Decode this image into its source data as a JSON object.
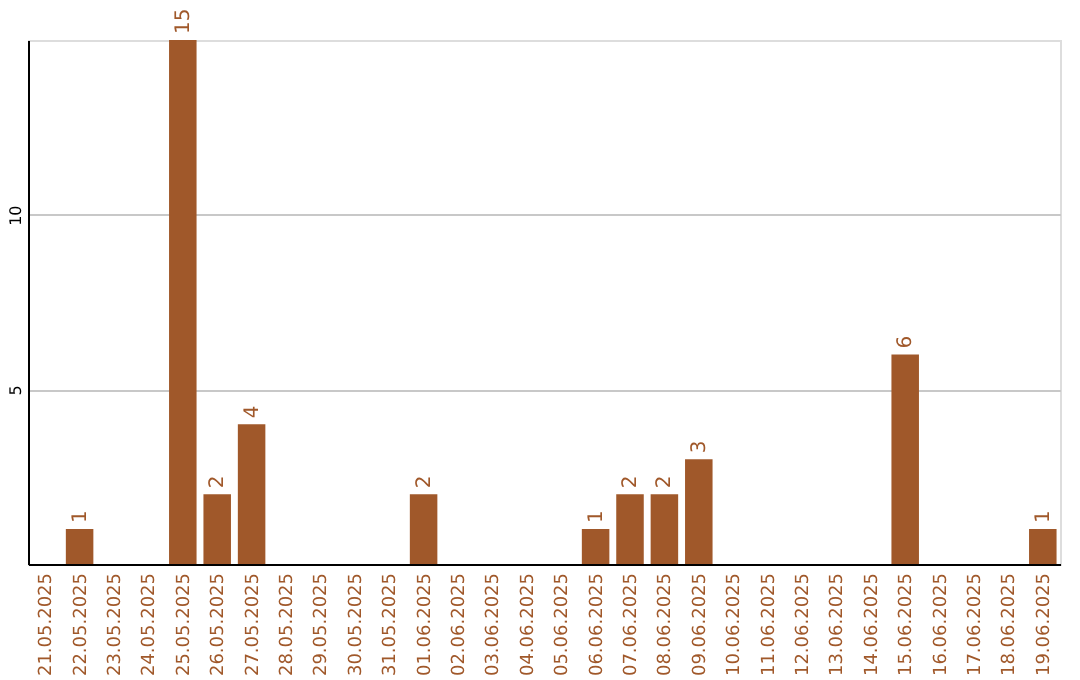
{
  "chart_data": {
    "type": "bar",
    "categories": [
      "21.05.2025",
      "22.05.2025",
      "23.05.2025",
      "24.05.2025",
      "25.05.2025",
      "26.05.2025",
      "27.05.2025",
      "28.05.2025",
      "29.05.2025",
      "30.05.2025",
      "31.05.2025",
      "01.06.2025",
      "02.06.2025",
      "03.06.2025",
      "04.06.2025",
      "05.06.2025",
      "06.06.2025",
      "07.06.2025",
      "08.06.2025",
      "09.06.2025",
      "10.06.2025",
      "11.06.2025",
      "12.06.2025",
      "13.06.2025",
      "14.06.2025",
      "15.06.2025",
      "16.06.2025",
      "17.06.2025",
      "18.06.2025",
      "19.06.2025"
    ],
    "values": [
      0,
      1,
      0,
      0,
      15,
      2,
      4,
      0,
      0,
      0,
      0,
      2,
      0,
      0,
      0,
      0,
      1,
      2,
      2,
      3,
      0,
      0,
      0,
      0,
      0,
      6,
      0,
      0,
      0,
      1
    ],
    "value_labels": [
      null,
      "1",
      null,
      null,
      "15",
      "2",
      "4",
      null,
      null,
      null,
      null,
      "2",
      null,
      null,
      null,
      null,
      "1",
      "2",
      "2",
      "3",
      null,
      null,
      null,
      null,
      null,
      "6",
      null,
      null,
      null,
      "1"
    ],
    "color": "#a0582a",
    "ylim": [
      0,
      15
    ],
    "yticks": [
      5,
      10
    ],
    "grid": "y"
  }
}
